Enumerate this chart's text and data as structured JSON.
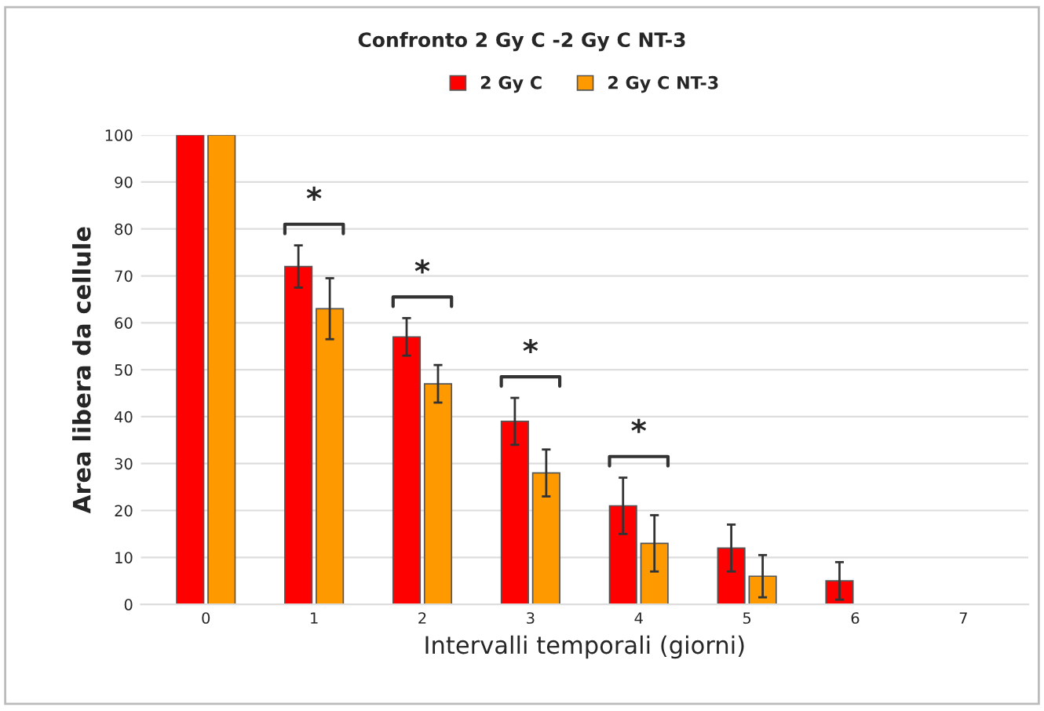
{
  "chart_data": {
    "type": "bar",
    "title": "Confronto 2 Gy C -2 Gy C NT-3",
    "xlabel": "Intervalli temporali (giorni)",
    "ylabel": "Area libera da cellule",
    "categories": [
      "0",
      "1",
      "2",
      "3",
      "4",
      "5",
      "6",
      "7"
    ],
    "series": [
      {
        "name": "2 Gy C",
        "color": "#ff0000",
        "values": [
          100,
          72,
          57,
          39,
          21,
          12,
          5,
          0
        ],
        "errors": [
          null,
          4.5,
          4,
          5,
          6,
          5,
          4,
          null
        ]
      },
      {
        "name": "2 Gy C NT-3",
        "color": "#ff9900",
        "values": [
          100,
          63,
          47,
          28,
          13,
          6,
          0,
          0
        ],
        "errors": [
          null,
          6.5,
          4,
          5,
          6,
          4.5,
          null,
          null
        ]
      }
    ],
    "ylim": [
      0,
      100
    ],
    "yticks": [
      0,
      10,
      20,
      30,
      40,
      50,
      60,
      70,
      80,
      90,
      100
    ],
    "grid": "y",
    "legend": "top",
    "annotations": [
      "*",
      "*",
      "*",
      "*"
    ]
  }
}
